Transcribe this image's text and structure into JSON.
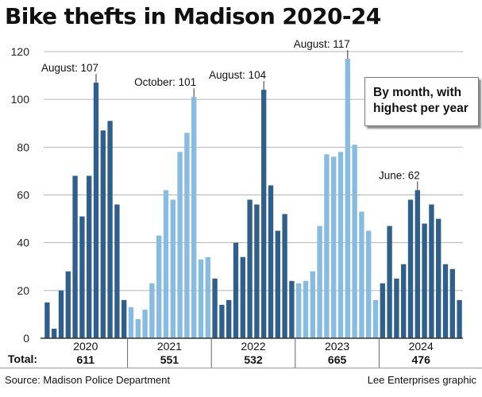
{
  "title": "Bike thefts in Madison 2020-24",
  "annotation": {
    "line1": "By month, with",
    "line2": "highest per year"
  },
  "source": "Source: Madison Police Department",
  "credit": "Lee Enterprises graphic",
  "colors": {
    "dark": "#2f5f8a",
    "light": "#87bbdf",
    "grid": "#b5b5b5",
    "axis": "#333333"
  },
  "chart_data": {
    "type": "bar",
    "title": "Bike thefts in Madison 2020-24",
    "xlabel": "",
    "ylabel": "",
    "ylim": [
      0,
      120
    ],
    "yticks": [
      0,
      20,
      40,
      60,
      80,
      100,
      120
    ],
    "total_label": "Total:",
    "years": [
      {
        "year": "2020",
        "total": "611",
        "shade": "dark",
        "values": [
          15,
          4,
          20,
          28,
          68,
          51,
          68,
          107,
          87,
          91,
          56,
          16
        ],
        "peak_label": "August: 107",
        "peak_index": 7
      },
      {
        "year": "2021",
        "total": "551",
        "shade": "light",
        "values": [
          13,
          8,
          12,
          23,
          43,
          62,
          58,
          78,
          86,
          101,
          33,
          34
        ],
        "peak_label": "October: 101",
        "peak_index": 9
      },
      {
        "year": "2022",
        "total": "532",
        "shade": "dark",
        "values": [
          25,
          14,
          16,
          40,
          34,
          58,
          56,
          104,
          64,
          45,
          52,
          24
        ],
        "peak_label": "August: 104",
        "peak_index": 7
      },
      {
        "year": "2023",
        "total": "665",
        "shade": "light",
        "values": [
          23,
          24,
          28,
          47,
          77,
          76,
          78,
          117,
          81,
          53,
          45,
          16
        ],
        "peak_label": "August: 117",
        "peak_index": 7
      },
      {
        "year": "2024",
        "total": "476",
        "shade": "dark",
        "values": [
          23,
          47,
          25,
          31,
          58,
          62,
          48,
          56,
          50,
          31,
          29,
          16
        ],
        "peak_label": "June: 62",
        "peak_index": 5
      }
    ]
  }
}
